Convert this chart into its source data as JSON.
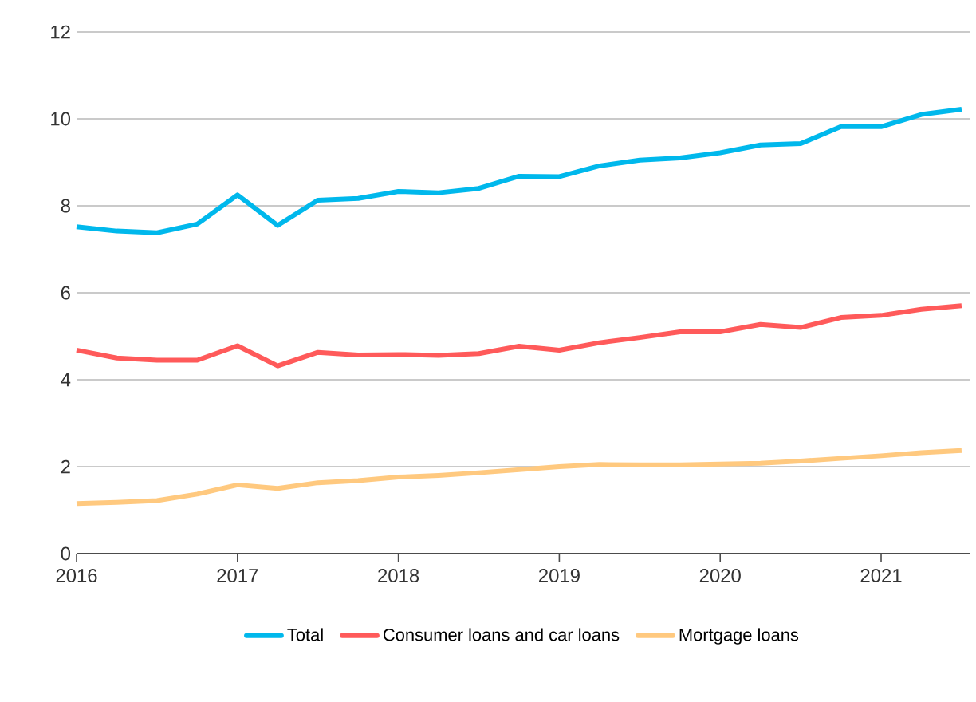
{
  "chart_data": {
    "type": "line",
    "x": [
      2016,
      2016.25,
      2016.5,
      2016.75,
      2017,
      2017.25,
      2017.5,
      2017.75,
      2018,
      2018.25,
      2018.5,
      2018.75,
      2019,
      2019.25,
      2019.5,
      2019.75,
      2020,
      2020.25,
      2020.5,
      2020.75,
      2021,
      2021.25,
      2021.5
    ],
    "series": [
      {
        "name": "Total",
        "color": "#00b8ec",
        "values": [
          7.52,
          7.42,
          7.38,
          7.58,
          8.25,
          7.55,
          8.13,
          8.17,
          8.33,
          8.3,
          8.4,
          8.68,
          8.67,
          8.92,
          9.05,
          9.1,
          9.22,
          9.4,
          9.43,
          9.82,
          9.82,
          10.1,
          10.22
        ]
      },
      {
        "name": "Consumer loans and car loans",
        "color": "#ff5a5a",
        "values": [
          4.68,
          4.5,
          4.45,
          4.45,
          4.78,
          4.32,
          4.63,
          4.57,
          4.58,
          4.56,
          4.6,
          4.77,
          4.68,
          4.85,
          4.97,
          5.1,
          5.1,
          5.27,
          5.2,
          5.43,
          5.48,
          5.62,
          5.7
        ]
      },
      {
        "name": "Mortgage loans",
        "color": "#ffc97f",
        "values": [
          1.15,
          1.18,
          1.22,
          1.37,
          1.58,
          1.5,
          1.63,
          1.68,
          1.76,
          1.8,
          1.86,
          1.93,
          2.0,
          2.05,
          2.04,
          2.04,
          2.06,
          2.08,
          2.13,
          2.19,
          2.25,
          2.32,
          2.37
        ]
      }
    ],
    "xlim": [
      2016,
      2021.55
    ],
    "xticks": [
      2016,
      2017,
      2018,
      2019,
      2020,
      2021
    ],
    "ylim": [
      0,
      12
    ],
    "yticks": [
      0,
      2,
      4,
      6,
      8,
      10,
      12
    ],
    "grid": "y",
    "legend": "bottom",
    "marker": "none",
    "line_style": "solid"
  }
}
